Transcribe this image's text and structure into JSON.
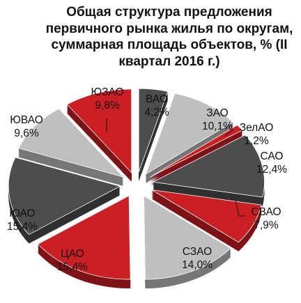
{
  "chart_data": {
    "type": "pie",
    "title": "Общая структура предложения первичного рынка жилья по округам, суммарная площадь объектов, % (II квартал 2016 г.)",
    "slices": [
      {
        "label": "ВАО",
        "value": 4.2,
        "value_text": "4,2%",
        "color": "#4d4d4d"
      },
      {
        "label": "ЗАО",
        "value": 10.1,
        "value_text": "10,1%",
        "color": "#bfbfbf"
      },
      {
        "label": "ЗелАО",
        "value": 1.2,
        "value_text": "1,2%",
        "color": "#cc1f24"
      },
      {
        "label": "САО",
        "value": 12.4,
        "value_text": "12,4%",
        "color": "#4d4d4d"
      },
      {
        "label": "СВАО",
        "value": 7.9,
        "value_text": "7,9%",
        "color": "#cc1f24"
      },
      {
        "label": "СЗАО",
        "value": 14.0,
        "value_text": "14,0%",
        "color": "#bfbfbf"
      },
      {
        "label": "ЦАО",
        "value": 15.4,
        "value_text": "15,4%",
        "color": "#cc1f24"
      },
      {
        "label": "ЮАО",
        "value": 15.4,
        "value_text": "15,4%",
        "color": "#4d4d4d"
      },
      {
        "label": "ЮВАО",
        "value": 9.6,
        "value_text": "9,6%",
        "color": "#bfbfbf"
      },
      {
        "label": "ЮЗАО",
        "value": 9.8,
        "value_text": "9,8%",
        "color": "#cc1f24"
      }
    ],
    "start_angle_deg": 0,
    "direction": "clockwise",
    "exploded": true,
    "legend": "none"
  }
}
